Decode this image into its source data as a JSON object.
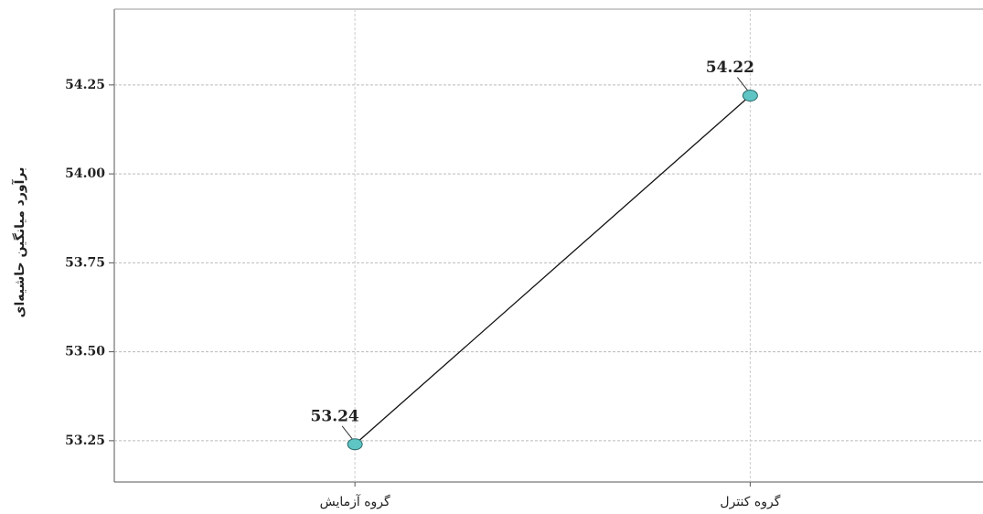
{
  "chart_data": {
    "type": "line",
    "y_label": "برآورد میانگین حاشیه‌ای",
    "categories": [
      "گروه آزمایش",
      "گروه کنترل"
    ],
    "series": [
      {
        "name": null,
        "color": "#5fc4c4",
        "values": [
          53.24,
          54.22
        ]
      }
    ],
    "ylim": [
      53.134,
      54.463
    ],
    "yticks": [
      53.25,
      {
        "value": 53.5,
        "label": "53.50"
      },
      53.75,
      {
        "value": 54,
        "label": "54.00"
      },
      54.25
    ],
    "grid": true
  }
}
